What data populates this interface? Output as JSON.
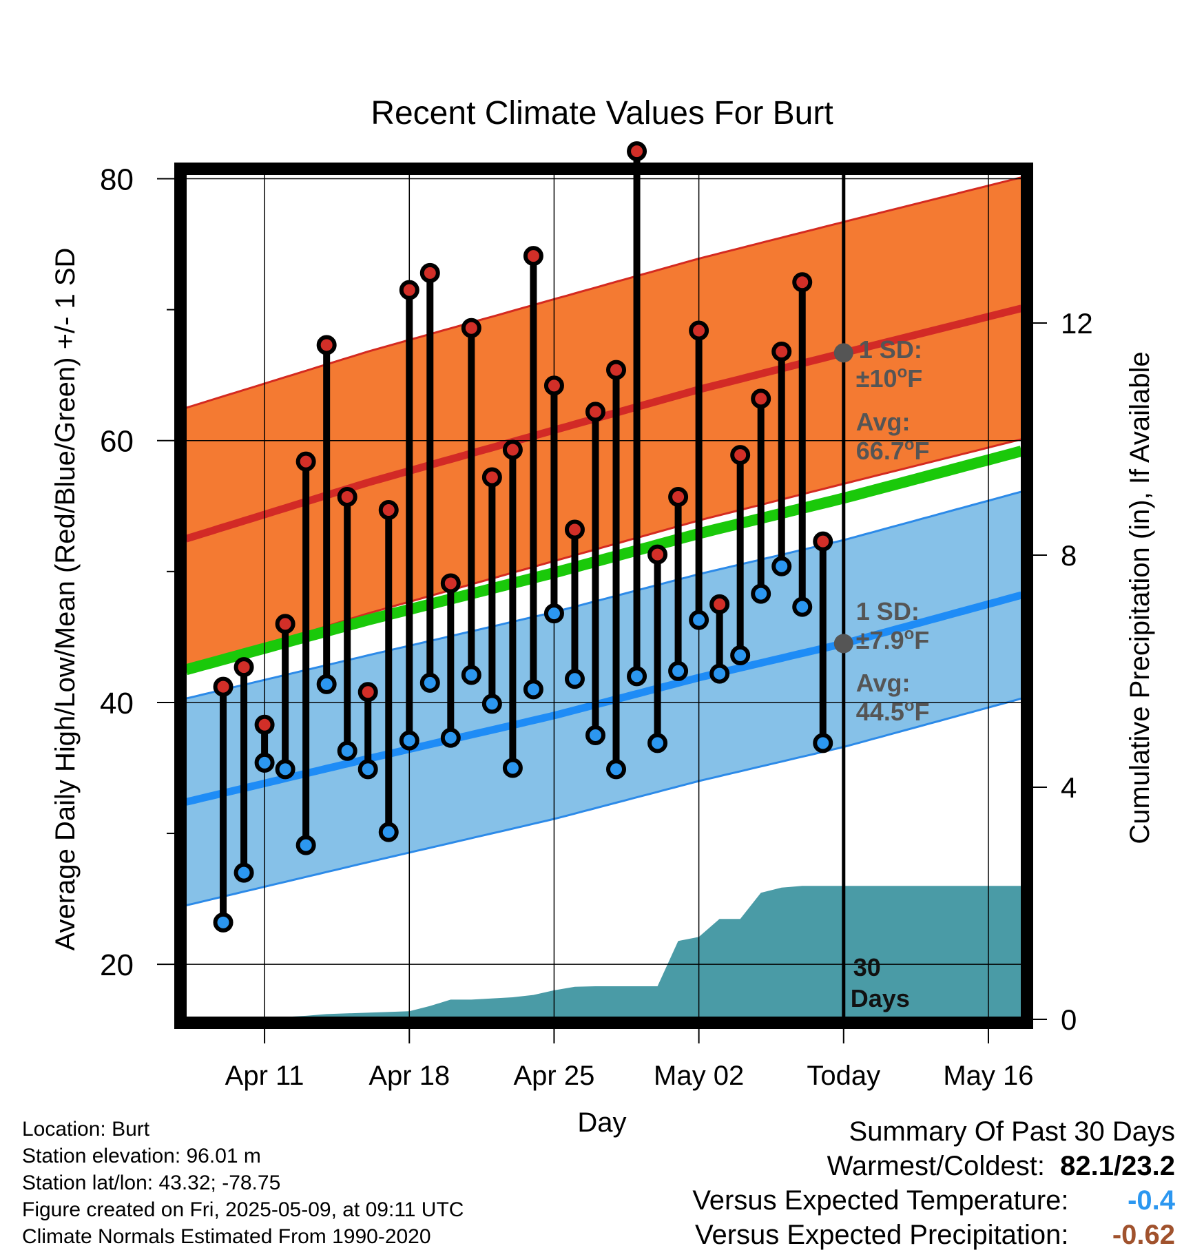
{
  "chart_data": {
    "type": "line",
    "title": "Recent Climate Values For Burt",
    "xlabel": "Day",
    "ylabel": "Average Daily High/Low/Mean (Red/Blue/Green) +/- 1 SD",
    "y2label": "Cumulative Precipitation (in), If Available",
    "ylim": [
      15.8,
      80.5
    ],
    "y2lim": [
      0,
      14.6
    ],
    "yticks": [
      20,
      40,
      60,
      80
    ],
    "y2ticks": [
      0,
      4,
      8,
      12
    ],
    "x_tick_labels": [
      "Apr 11",
      "Apr 18",
      "Apr 25",
      "May 02",
      "Today",
      "May 16"
    ],
    "x_tick_days": [
      11,
      18,
      25,
      32,
      39,
      46
    ],
    "xlim": [
      7.2,
      47.6
    ],
    "grid": true,
    "today_day": 39,
    "today_label": [
      "30",
      "Days"
    ],
    "normals": {
      "high_avg": [
        [
          7.2,
          52.5
        ],
        [
          16,
          56.8
        ],
        [
          25,
          60.8
        ],
        [
          32,
          63.9
        ],
        [
          39,
          66.7
        ],
        [
          47.6,
          70.1
        ]
      ],
      "high_sd": 10,
      "low_avg": [
        [
          7.2,
          32.4
        ],
        [
          16,
          35.7
        ],
        [
          25,
          39.0
        ],
        [
          32,
          41.9
        ],
        [
          39,
          44.5
        ],
        [
          47.6,
          48.2
        ]
      ],
      "low_sd": 7.9,
      "mean": [
        [
          7.2,
          42.5
        ],
        [
          16,
          46.3
        ],
        [
          25,
          49.9
        ],
        [
          32,
          52.9
        ],
        [
          39,
          55.6
        ],
        [
          47.6,
          59.2
        ]
      ]
    },
    "series": [
      {
        "name": "High",
        "days": [
          9,
          10,
          11,
          12,
          13,
          14,
          15,
          16,
          17,
          18,
          19,
          20,
          21,
          22,
          23,
          24,
          25,
          26,
          27,
          28,
          29,
          30,
          31,
          32,
          33,
          34,
          35,
          36,
          37,
          38
        ],
        "values": [
          41.2,
          42.7,
          38.3,
          46.0,
          58.4,
          67.3,
          55.7,
          40.8,
          54.7,
          71.5,
          72.8,
          49.1,
          68.6,
          57.2,
          59.3,
          74.1,
          64.2,
          53.2,
          62.2,
          65.4,
          82.1,
          51.3,
          55.7,
          68.4,
          47.5,
          58.9,
          63.2,
          66.8,
          72.1,
          52.3
        ]
      },
      {
        "name": "Low",
        "days": [
          9,
          10,
          11,
          12,
          13,
          14,
          15,
          16,
          17,
          18,
          19,
          20,
          21,
          22,
          23,
          24,
          25,
          26,
          27,
          28,
          29,
          30,
          31,
          32,
          33,
          34,
          35,
          36,
          37,
          38
        ],
        "values": [
          23.2,
          27.0,
          35.4,
          34.9,
          29.1,
          41.4,
          36.3,
          34.9,
          30.1,
          37.1,
          41.5,
          37.3,
          42.1,
          39.9,
          35.0,
          41.0,
          46.8,
          41.8,
          37.5,
          34.9,
          42.0,
          36.9,
          42.4,
          46.3,
          42.2,
          43.6,
          48.3,
          50.4,
          47.3,
          36.9
        ]
      }
    ],
    "precipitation": {
      "days": [
        7.2,
        11,
        13,
        14,
        18,
        19,
        20,
        21,
        23,
        24,
        25,
        26,
        27,
        30,
        31,
        32,
        33,
        34,
        35,
        36,
        37,
        38,
        39,
        47.6
      ],
      "values": [
        0,
        0.02,
        0.06,
        0.09,
        0.14,
        0.23,
        0.34,
        0.34,
        0.38,
        0.42,
        0.5,
        0.56,
        0.57,
        0.57,
        1.35,
        1.42,
        1.73,
        1.73,
        2.18,
        2.27,
        2.3,
        2.3,
        2.3,
        2.3
      ]
    },
    "annotations": {
      "high_sd_label": "1 SD:",
      "high_sd_value": "±10",
      "high_avg_label": "Avg:",
      "high_avg_value": "66.7",
      "low_sd_label": "1 SD:",
      "low_sd_value": "±7.9",
      "low_avg_label": "Avg:",
      "low_avg_value": "44.5",
      "degree_mark": "o",
      "unit": "F"
    },
    "colors": {
      "high_band": "#F47A32",
      "high_band_edge": "#D42A20",
      "high_line": "#D22A26",
      "low_band": "#86C1E8",
      "low_band_edge": "#2C8AE8",
      "low_line": "#1E8CF6",
      "mean_line": "#1AC90A",
      "precip": "#4A9BA6",
      "high_dot": "#D22F28",
      "low_dot": "#2C97F0",
      "annotation": "#555555"
    }
  },
  "footer": {
    "location": "Location: Burt",
    "elevation": "Station elevation: 96.01 m",
    "latlon": "Station lat/lon: 43.32; -78.75",
    "created": "Figure created on Fri, 2025-05-09, at 09:11 UTC",
    "normals": "Climate Normals Estimated From 1990-2020"
  },
  "summary": {
    "title": "Summary Of Past 30 Days",
    "warm_cold_label": "Warmest/Coldest:",
    "warm_cold_value": "82.1/23.2",
    "temp_label": "Versus Expected Temperature:",
    "temp_value": "-0.4",
    "temp_color": "#2C97F0",
    "precip_label": "Versus Expected Precipitation:",
    "precip_value": "-0.62",
    "precip_color": "#A0522D"
  }
}
